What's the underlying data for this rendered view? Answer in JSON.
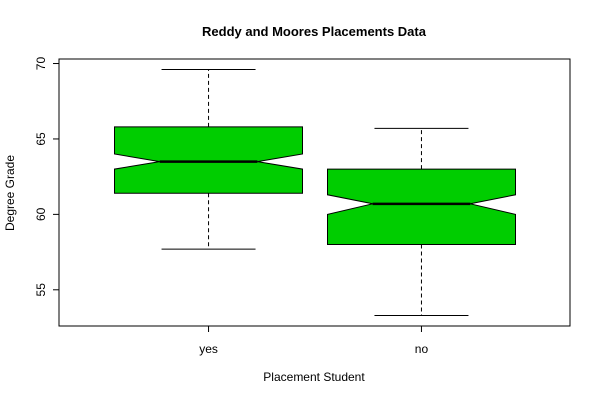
{
  "chart_data": {
    "type": "boxplot",
    "title": "Reddy and Moores Placements Data",
    "xlabel": "Placement Student",
    "ylabel": "Degree Grade",
    "categories": [
      "yes",
      "no"
    ],
    "ylim": [
      52.6,
      70.3
    ],
    "yticks": [
      55,
      60,
      65,
      70
    ],
    "notched": true,
    "grid": false,
    "box_color": "#00CD00",
    "boxes": [
      {
        "category": "yes",
        "whisker_low": 57.7,
        "q1": 61.4,
        "median": 63.5,
        "q3": 65.8,
        "whisker_high": 69.6,
        "notch_low": 63.0,
        "notch_high": 64.0
      },
      {
        "category": "no",
        "whisker_low": 53.3,
        "q1": 58.0,
        "median": 60.7,
        "q3": 63.0,
        "whisker_high": 65.7,
        "notch_low": 60.0,
        "notch_high": 61.3
      }
    ]
  }
}
